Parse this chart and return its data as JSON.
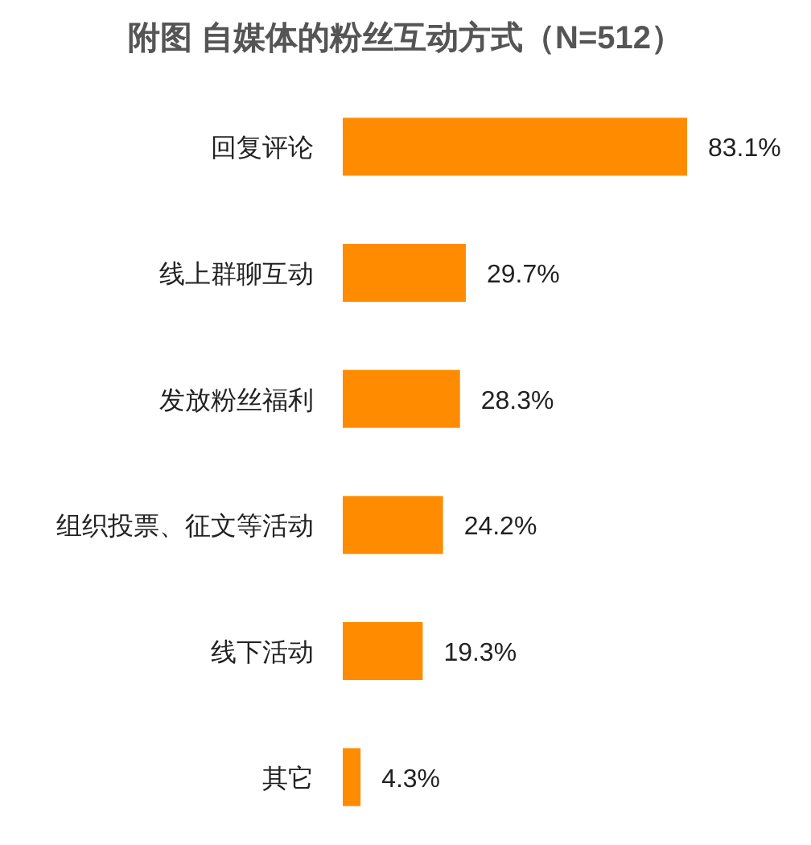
{
  "chart_data": {
    "type": "bar",
    "orientation": "horizontal",
    "title": "附图 自媒体的粉丝互动方式（N=512）",
    "categories": [
      "回复评论",
      "线上群聊互动",
      "发放粉丝福利",
      "组织投票、征文等活动",
      "线下活动",
      "其它"
    ],
    "values": [
      83.1,
      29.7,
      28.3,
      24.2,
      19.3,
      4.3
    ],
    "value_labels": [
      "83.1%",
      "29.7%",
      "28.3%",
      "24.2%",
      "19.3%",
      "4.3%"
    ],
    "color": "#ff8c00"
  }
}
